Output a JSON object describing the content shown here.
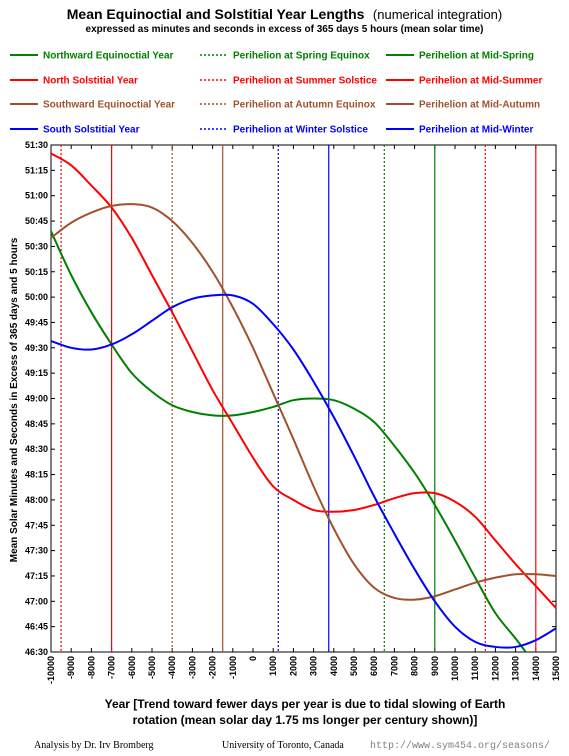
{
  "chart_data": {
    "type": "line",
    "title_main": "Mean Equinoctial and Solstitial Year Lengths",
    "title_suffix": "(numerical integration)",
    "subtitle": "expressed as minutes and seconds in excess of 365 days 5 hours (mean solar time)",
    "xlabel_line1": "Year [Trend toward fewer days per year is due to tidal slowing of Earth",
    "xlabel_line2": "rotation (mean solar day 1.75 ms longer per century shown)]",
    "ylabel": "Mean Solar Minutes and Seconds in Excess of 365 days and 5 hours",
    "xlim": [
      -10000,
      15000
    ],
    "ylim": [
      2790,
      3090
    ],
    "x_ticks": [
      -10000,
      -9000,
      -8000,
      -7000,
      -6000,
      -5000,
      -4000,
      -3000,
      -2000,
      -1000,
      0,
      1000,
      2000,
      3000,
      4000,
      5000,
      6000,
      7000,
      8000,
      9000,
      10000,
      11000,
      12000,
      13000,
      14000,
      15000
    ],
    "y_ticks": [
      {
        "v": 2790,
        "label": "46:30"
      },
      {
        "v": 2805,
        "label": "46:45"
      },
      {
        "v": 2820,
        "label": "47:00"
      },
      {
        "v": 2835,
        "label": "47:15"
      },
      {
        "v": 2850,
        "label": "47:30"
      },
      {
        "v": 2865,
        "label": "47:45"
      },
      {
        "v": 2880,
        "label": "48:00"
      },
      {
        "v": 2895,
        "label": "48:15"
      },
      {
        "v": 2910,
        "label": "48:30"
      },
      {
        "v": 2925,
        "label": "48:45"
      },
      {
        "v": 2940,
        "label": "49:00"
      },
      {
        "v": 2955,
        "label": "49:15"
      },
      {
        "v": 2970,
        "label": "49:30"
      },
      {
        "v": 2985,
        "label": "49:45"
      },
      {
        "v": 3000,
        "label": "50:00"
      },
      {
        "v": 3015,
        "label": "50:15"
      },
      {
        "v": 3030,
        "label": "50:30"
      },
      {
        "v": 3045,
        "label": "50:45"
      },
      {
        "v": 3060,
        "label": "51:00"
      },
      {
        "v": 3075,
        "label": "51:15"
      },
      {
        "v": 3090,
        "label": "51:30"
      }
    ],
    "series": [
      {
        "name": "Northward Equinoctial Year",
        "color": "#008000",
        "x": [
          -10000,
          -9000,
          -8000,
          -7000,
          -6000,
          -5000,
          -4000,
          -3000,
          -2000,
          -1000,
          0,
          1000,
          2000,
          3000,
          4000,
          5000,
          6000,
          7000,
          8000,
          9000,
          10000,
          11000,
          12000,
          13000,
          13500
        ],
        "y": [
          3039,
          3013,
          2991,
          2972,
          2955,
          2944,
          2936,
          2932,
          2930,
          2930,
          2932,
          2935,
          2939,
          2940,
          2939,
          2934,
          2926,
          2912,
          2896,
          2877,
          2856,
          2834,
          2813,
          2798,
          2790
        ]
      },
      {
        "name": "North Solstitial Year",
        "color": "#ff0000",
        "x": [
          -10000,
          -9000,
          -8000,
          -7000,
          -6000,
          -5000,
          -4000,
          -3000,
          -2000,
          -1000,
          0,
          1000,
          2000,
          3000,
          4000,
          5000,
          6000,
          7000,
          8000,
          9000,
          10000,
          11000,
          12000,
          13000,
          14000,
          15000
        ],
        "y": [
          3085,
          3078,
          3066,
          3053,
          3035,
          3013,
          2991,
          2968,
          2945,
          2925,
          2905,
          2888,
          2880,
          2874,
          2873,
          2874,
          2877,
          2881,
          2884,
          2884,
          2879,
          2870,
          2856,
          2842,
          2829,
          2816
        ]
      },
      {
        "name": "Southward Equinoctial Year",
        "color": "#a0522d",
        "x": [
          -10000,
          -9000,
          -8000,
          -7000,
          -6000,
          -5000,
          -4000,
          -3000,
          -2000,
          -1000,
          0,
          1000,
          2000,
          3000,
          4000,
          5000,
          6000,
          7000,
          8000,
          9000,
          10000,
          11000,
          12000,
          13000,
          14000,
          15000
        ],
        "y": [
          3035,
          3044,
          3050,
          3054,
          3055,
          3053,
          3045,
          3032,
          3015,
          2994,
          2970,
          2943,
          2916,
          2888,
          2863,
          2842,
          2828,
          2822,
          2821,
          2823,
          2827,
          2831,
          2834,
          2836,
          2836,
          2835
        ]
      },
      {
        "name": "South Solstitial Year",
        "color": "#0000ff",
        "x": [
          -10000,
          -9000,
          -8000,
          -7000,
          -6000,
          -5000,
          -4000,
          -3000,
          -2000,
          -1000,
          0,
          1000,
          2000,
          3000,
          4000,
          5000,
          6000,
          7000,
          8000,
          9000,
          10000,
          11000,
          12000,
          13000,
          14000,
          15000
        ],
        "y": [
          2974,
          2970,
          2969,
          2972,
          2978,
          2986,
          2994,
          2999,
          3001,
          3001,
          2996,
          2984,
          2969,
          2950,
          2929,
          2906,
          2882,
          2860,
          2839,
          2820,
          2805,
          2796,
          2793,
          2793,
          2797,
          2804
        ]
      }
    ],
    "vlines": [
      {
        "name": "Perihelion at Spring Equinox",
        "x": 6500,
        "color": "#008000",
        "dash": true
      },
      {
        "name": "Perihelion at Mid-Spring",
        "x": 9000,
        "color": "#008000",
        "dash": false
      },
      {
        "name": "Perihelion at Summer Solstice",
        "x": 11500,
        "color": "#ff0000",
        "dash": true
      },
      {
        "name": "Perihelion at Mid-Summer",
        "x": 14000,
        "color": "#ff0000",
        "dash": false
      },
      {
        "name": "Perihelion at Summer Solstice",
        "x": -9500,
        "color": "#ff0000",
        "dash": true
      },
      {
        "name": "Perihelion at Mid-Summer",
        "x": -7000,
        "color": "#ff0000",
        "dash": false
      },
      {
        "name": "Perihelion at Autumn Equinox",
        "x": -4000,
        "color": "#a0522d",
        "dash": true
      },
      {
        "name": "Perihelion at Mid-Autumn",
        "x": -1500,
        "color": "#a0522d",
        "dash": false
      },
      {
        "name": "Perihelion at Winter Solstice",
        "x": 1250,
        "color": "#0000ff",
        "dash": true
      },
      {
        "name": "Perihelion at Mid-Winter",
        "x": 3750,
        "color": "#0000ff",
        "dash": false
      }
    ],
    "legend": [
      {
        "label": "Northward Equinoctial Year",
        "color": "#008000",
        "style": "solid"
      },
      {
        "label": "Perihelion at Spring Equinox",
        "color": "#008000",
        "style": "dotted"
      },
      {
        "label": "Perihelion at Mid-Spring",
        "color": "#008000",
        "style": "solid"
      },
      {
        "label": "North Solstitial Year",
        "color": "#ff0000",
        "style": "solid"
      },
      {
        "label": "Perihelion at Summer Solstice",
        "color": "#ff0000",
        "style": "dotted"
      },
      {
        "label": "Perihelion at Mid-Summer",
        "color": "#ff0000",
        "style": "solid"
      },
      {
        "label": "Southward Equinoctial Year",
        "color": "#a0522d",
        "style": "solid"
      },
      {
        "label": "Perihelion at Autumn Equinox",
        "color": "#a0522d",
        "style": "dotted"
      },
      {
        "label": "Perihelion at Mid-Autumn",
        "color": "#a0522d",
        "style": "solid"
      },
      {
        "label": "South Solstitial Year",
        "color": "#0000ff",
        "style": "solid"
      },
      {
        "label": "Perihelion at Winter Solstice",
        "color": "#0000ff",
        "style": "dotted"
      },
      {
        "label": "Perihelion at Mid-Winter",
        "color": "#0000ff",
        "style": "solid"
      }
    ],
    "grid": false,
    "legend_position": "top"
  },
  "footer": {
    "author": "Analysis by Dr. Irv Bromberg",
    "institution": "University of Toronto, Canada",
    "url": "http://www.sym454.org/seasons/"
  }
}
